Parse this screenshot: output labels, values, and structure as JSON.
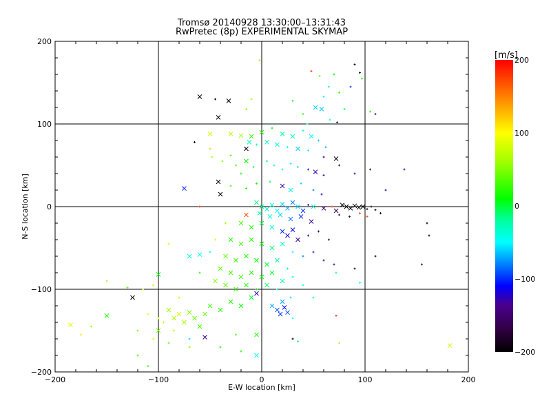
{
  "chart_data": {
    "type": "scatter",
    "title": "Tromsø 20140928 13:30:00–13:31:43",
    "subtitle": "RwPretec (8p) EXPERIMENTAL SKYMAP",
    "xlabel": "E-W location [km]",
    "ylabel": "N-S location [km]",
    "xlim": [
      -200,
      200
    ],
    "ylim": [
      -200,
      200
    ],
    "xticks": [
      "-200",
      "-100",
      "0",
      "100",
      "200"
    ],
    "yticks": [
      "-200",
      "-100",
      "0",
      "100",
      "200"
    ],
    "grid": true,
    "colorbar": {
      "label": "[m/s]",
      "range": [
        -200,
        200
      ],
      "ticks": [
        "200",
        "100",
        "0",
        "-100",
        "-200"
      ],
      "colormap": [
        [
          -200,
          "#000000"
        ],
        [
          -170,
          "#300040"
        ],
        [
          -135,
          "#4a0090"
        ],
        [
          -110,
          "#0000ff"
        ],
        [
          -80,
          "#0080ff"
        ],
        [
          -50,
          "#00ffff"
        ],
        [
          -20,
          "#00ffa0"
        ],
        [
          10,
          "#00ff00"
        ],
        [
          60,
          "#a0ff00"
        ],
        [
          100,
          "#ffff00"
        ],
        [
          150,
          "#ff8000"
        ],
        [
          200,
          "#ff0000"
        ]
      ]
    },
    "marker_legend": {
      "x": "cross",
      "+": "small plus"
    },
    "points": [
      [
        -60,
        133,
        -200,
        "x"
      ],
      [
        -42,
        108,
        -200,
        "x"
      ],
      [
        -32,
        128,
        -200,
        "x"
      ],
      [
        -45,
        130,
        -200,
        "+"
      ],
      [
        -10,
        130,
        60,
        "+"
      ],
      [
        -15,
        118,
        50,
        "+"
      ],
      [
        -2,
        177,
        60,
        "+"
      ],
      [
        48,
        164,
        180,
        "+"
      ],
      [
        56,
        158,
        40,
        "+"
      ],
      [
        65,
        145,
        -20,
        "+"
      ],
      [
        70,
        160,
        10,
        "+"
      ],
      [
        90,
        172,
        -190,
        "+"
      ],
      [
        95,
        162,
        -190,
        "+"
      ],
      [
        97,
        155,
        10,
        "+"
      ],
      [
        86,
        145,
        -100,
        "+"
      ],
      [
        60,
        133,
        -40,
        "+"
      ],
      [
        75,
        138,
        30,
        "+"
      ],
      [
        52,
        120,
        -60,
        "x"
      ],
      [
        58,
        118,
        -60,
        "x"
      ],
      [
        66,
        105,
        -40,
        "+"
      ],
      [
        73,
        102,
        -160,
        "+"
      ],
      [
        110,
        112,
        -160,
        "+"
      ],
      [
        105,
        115,
        20,
        "+"
      ],
      [
        80,
        118,
        -10,
        "+"
      ],
      [
        40,
        112,
        20,
        "+"
      ],
      [
        44,
        100,
        -20,
        "+"
      ],
      [
        30,
        128,
        0,
        "+"
      ],
      [
        -50,
        88,
        80,
        "x"
      ],
      [
        -30,
        88,
        70,
        "x"
      ],
      [
        -20,
        86,
        60,
        "x"
      ],
      [
        -10,
        85,
        30,
        "x"
      ],
      [
        0,
        90,
        20,
        "x"
      ],
      [
        10,
        95,
        10,
        "+"
      ],
      [
        20,
        88,
        -20,
        "x"
      ],
      [
        30,
        85,
        -30,
        "x"
      ],
      [
        40,
        92,
        -40,
        "+"
      ],
      [
        48,
        85,
        -50,
        "x"
      ],
      [
        55,
        80,
        -60,
        "+"
      ],
      [
        62,
        72,
        -70,
        "+"
      ],
      [
        -15,
        70,
        -200,
        "x"
      ],
      [
        -12,
        78,
        -30,
        "x"
      ],
      [
        -5,
        75,
        -20,
        "+"
      ],
      [
        5,
        78,
        -30,
        "x"
      ],
      [
        15,
        75,
        -40,
        "x"
      ],
      [
        25,
        72,
        -50,
        "+"
      ],
      [
        35,
        70,
        -60,
        "x"
      ],
      [
        45,
        68,
        -50,
        "+"
      ],
      [
        60,
        60,
        -140,
        "+"
      ],
      [
        72,
        58,
        -200,
        "x"
      ],
      [
        75,
        50,
        -150,
        "+"
      ],
      [
        90,
        40,
        -150,
        "+"
      ],
      [
        105,
        45,
        -150,
        "+"
      ],
      [
        -65,
        78,
        -200,
        "+"
      ],
      [
        -50,
        70,
        120,
        "+"
      ],
      [
        -48,
        60,
        60,
        "+"
      ],
      [
        -38,
        55,
        50,
        "+"
      ],
      [
        -30,
        62,
        40,
        "+"
      ],
      [
        -25,
        50,
        30,
        "+"
      ],
      [
        -20,
        40,
        20,
        "+"
      ],
      [
        -15,
        55,
        10,
        "x"
      ],
      [
        -8,
        48,
        0,
        "+"
      ],
      [
        5,
        55,
        -20,
        "+"
      ],
      [
        12,
        50,
        -30,
        "+"
      ],
      [
        20,
        45,
        -40,
        "+"
      ],
      [
        28,
        52,
        -50,
        "+"
      ],
      [
        35,
        48,
        -60,
        "+"
      ],
      [
        45,
        45,
        -100,
        "+"
      ],
      [
        52,
        42,
        -130,
        "x"
      ],
      [
        60,
        38,
        -140,
        "+"
      ],
      [
        -42,
        30,
        -200,
        "x"
      ],
      [
        -40,
        15,
        -200,
        "x"
      ],
      [
        -75,
        22,
        -100,
        "x"
      ],
      [
        -30,
        25,
        30,
        "+"
      ],
      [
        -15,
        22,
        20,
        "+"
      ],
      [
        -5,
        28,
        10,
        "+"
      ],
      [
        8,
        30,
        -10,
        "+"
      ],
      [
        20,
        25,
        -130,
        "x"
      ],
      [
        28,
        20,
        -40,
        "x"
      ],
      [
        38,
        28,
        -60,
        "+"
      ],
      [
        50,
        20,
        -80,
        "+"
      ],
      [
        58,
        15,
        -120,
        "+"
      ],
      [
        120,
        20,
        -150,
        "+"
      ],
      [
        138,
        45,
        -130,
        "+"
      ],
      [
        -60,
        0,
        190,
        "+"
      ],
      [
        -5,
        5,
        -10,
        "x"
      ],
      [
        0,
        0,
        -20,
        "x"
      ],
      [
        5,
        -3,
        -30,
        "x"
      ],
      [
        10,
        2,
        -40,
        "x"
      ],
      [
        15,
        -5,
        -50,
        "x"
      ],
      [
        20,
        3,
        -60,
        "x"
      ],
      [
        25,
        -2,
        -70,
        "x"
      ],
      [
        30,
        5,
        -80,
        "x"
      ],
      [
        35,
        0,
        -60,
        "x"
      ],
      [
        40,
        -5,
        -100,
        "x"
      ],
      [
        45,
        2,
        -120,
        "+"
      ],
      [
        50,
        0,
        -30,
        "x"
      ],
      [
        -2,
        -8,
        -20,
        "x"
      ],
      [
        8,
        -12,
        -40,
        "x"
      ],
      [
        18,
        -10,
        -60,
        "x"
      ],
      [
        28,
        -15,
        -80,
        "x"
      ],
      [
        38,
        -12,
        -100,
        "x"
      ],
      [
        48,
        -18,
        -130,
        "x"
      ],
      [
        60,
        -2,
        -150,
        "x"
      ],
      [
        68,
        0,
        180,
        "+"
      ],
      [
        72,
        -5,
        -170,
        "x"
      ],
      [
        78,
        2,
        -190,
        "x"
      ],
      [
        82,
        0,
        -200,
        "x"
      ],
      [
        86,
        -2,
        -200,
        "x"
      ],
      [
        90,
        1,
        -200,
        "x"
      ],
      [
        94,
        -1,
        -200,
        "x"
      ],
      [
        98,
        0,
        -200,
        "x"
      ],
      [
        102,
        -3,
        -200,
        "+"
      ],
      [
        106,
        0,
        -200,
        "+"
      ],
      [
        110,
        -4,
        -200,
        "+"
      ],
      [
        115,
        -8,
        -200,
        "+"
      ],
      [
        95,
        -8,
        180,
        "+"
      ],
      [
        102,
        -12,
        170,
        "+"
      ],
      [
        75,
        -10,
        -160,
        "+"
      ],
      [
        85,
        -12,
        -170,
        "+"
      ],
      [
        160,
        -20,
        -200,
        "+"
      ],
      [
        162,
        -35,
        -200,
        "+"
      ],
      [
        155,
        -70,
        -180,
        "+"
      ],
      [
        90,
        -75,
        -200,
        "+"
      ],
      [
        110,
        -60,
        -200,
        "+"
      ],
      [
        -15,
        -10,
        170,
        "x"
      ],
      [
        -20,
        -20,
        30,
        "x"
      ],
      [
        -10,
        -25,
        20,
        "x"
      ],
      [
        0,
        -20,
        0,
        "x"
      ],
      [
        10,
        -25,
        -30,
        "x"
      ],
      [
        20,
        -30,
        -100,
        "x"
      ],
      [
        25,
        -35,
        -120,
        "x"
      ],
      [
        30,
        -28,
        -110,
        "x"
      ],
      [
        35,
        -40,
        -130,
        "x"
      ],
      [
        45,
        -35,
        -150,
        "+"
      ],
      [
        55,
        -30,
        -160,
        "+"
      ],
      [
        65,
        -40,
        -170,
        "+"
      ],
      [
        -30,
        -40,
        20,
        "x"
      ],
      [
        -20,
        -45,
        30,
        "x"
      ],
      [
        -10,
        -40,
        20,
        "x"
      ],
      [
        0,
        -45,
        10,
        "x"
      ],
      [
        10,
        -50,
        -10,
        "x"
      ],
      [
        20,
        -45,
        -30,
        "x"
      ],
      [
        30,
        -55,
        -50,
        "+"
      ],
      [
        40,
        -60,
        -80,
        "+"
      ],
      [
        50,
        -55,
        -100,
        "+"
      ],
      [
        60,
        -65,
        -150,
        "+"
      ],
      [
        70,
        -70,
        -150,
        "+"
      ],
      [
        -35,
        -60,
        40,
        "x"
      ],
      [
        -25,
        -65,
        30,
        "x"
      ],
      [
        -15,
        -60,
        20,
        "x"
      ],
      [
        -5,
        -65,
        10,
        "x"
      ],
      [
        5,
        -70,
        0,
        "x"
      ],
      [
        15,
        -65,
        -20,
        "x"
      ],
      [
        25,
        -75,
        -30,
        "+"
      ],
      [
        -60,
        -58,
        -40,
        "x"
      ],
      [
        -70,
        -60,
        -40,
        "x"
      ],
      [
        -50,
        -55,
        -30,
        "+"
      ],
      [
        -90,
        -45,
        80,
        "+"
      ],
      [
        -40,
        -75,
        40,
        "x"
      ],
      [
        -30,
        -80,
        30,
        "x"
      ],
      [
        -20,
        -85,
        30,
        "x"
      ],
      [
        -10,
        -80,
        20,
        "x"
      ],
      [
        0,
        -85,
        10,
        "x"
      ],
      [
        10,
        -80,
        0,
        "x"
      ],
      [
        20,
        -90,
        -20,
        "x"
      ],
      [
        30,
        -85,
        -30,
        "+"
      ],
      [
        -45,
        -90,
        50,
        "x"
      ],
      [
        -35,
        -95,
        40,
        "x"
      ],
      [
        -25,
        -100,
        30,
        "x"
      ],
      [
        -15,
        -95,
        20,
        "x"
      ],
      [
        -5,
        -100,
        10,
        "+"
      ],
      [
        5,
        -95,
        -10,
        "x"
      ],
      [
        15,
        -100,
        -30,
        "+"
      ],
      [
        40,
        -95,
        -40,
        "+"
      ],
      [
        50,
        -110,
        -30,
        "+"
      ],
      [
        -100,
        -82,
        10,
        "x"
      ],
      [
        -105,
        -95,
        80,
        "+"
      ],
      [
        -115,
        -100,
        60,
        "+"
      ],
      [
        -125,
        -110,
        -200,
        "x"
      ],
      [
        -150,
        -90,
        60,
        "+"
      ],
      [
        -130,
        -98,
        40,
        "+"
      ],
      [
        -110,
        -130,
        90,
        "+"
      ],
      [
        -90,
        -125,
        60,
        "x"
      ],
      [
        -85,
        -135,
        70,
        "x"
      ],
      [
        -80,
        -130,
        80,
        "x"
      ],
      [
        -75,
        -140,
        60,
        "x"
      ],
      [
        -70,
        -128,
        50,
        "x"
      ],
      [
        -65,
        -135,
        40,
        "x"
      ],
      [
        -60,
        -145,
        30,
        "x"
      ],
      [
        -55,
        -130,
        40,
        "x"
      ],
      [
        -95,
        -140,
        70,
        "+"
      ],
      [
        -100,
        -135,
        80,
        "+"
      ],
      [
        -85,
        -150,
        60,
        "+"
      ],
      [
        -50,
        -120,
        30,
        "x"
      ],
      [
        -40,
        -125,
        20,
        "x"
      ],
      [
        -30,
        -115,
        20,
        "x"
      ],
      [
        -20,
        -120,
        10,
        "x"
      ],
      [
        -10,
        -110,
        0,
        "x"
      ],
      [
        -5,
        -105,
        -130,
        "x"
      ],
      [
        15,
        -125,
        -90,
        "x"
      ],
      [
        18,
        -130,
        -100,
        "x"
      ],
      [
        22,
        -122,
        -110,
        "x"
      ],
      [
        25,
        -128,
        -90,
        "x"
      ],
      [
        20,
        -115,
        -70,
        "x"
      ],
      [
        28,
        -110,
        -60,
        "+"
      ],
      [
        10,
        -120,
        -70,
        "x"
      ],
      [
        30,
        -135,
        -50,
        "+"
      ],
      [
        -185,
        -143,
        90,
        "x"
      ],
      [
        -175,
        -155,
        110,
        "+"
      ],
      [
        -165,
        -145,
        60,
        "+"
      ],
      [
        -150,
        -132,
        20,
        "x"
      ],
      [
        -120,
        -150,
        40,
        "+"
      ],
      [
        -105,
        -160,
        90,
        "+"
      ],
      [
        -90,
        -165,
        40,
        "+"
      ],
      [
        -70,
        -160,
        -60,
        "+"
      ],
      [
        -55,
        -158,
        -130,
        "x"
      ],
      [
        -40,
        -170,
        20,
        "+"
      ],
      [
        -20,
        -175,
        20,
        "+"
      ],
      [
        -5,
        -155,
        20,
        "x"
      ],
      [
        -5,
        -180,
        -50,
        "x"
      ],
      [
        30,
        -160,
        -200,
        "+"
      ],
      [
        35,
        -163,
        -10,
        "+"
      ],
      [
        75,
        -165,
        60,
        "+"
      ],
      [
        182,
        -168,
        80,
        "x"
      ],
      [
        -110,
        -193,
        20,
        "+"
      ],
      [
        -120,
        -180,
        30,
        "+"
      ],
      [
        72,
        -132,
        180,
        "+"
      ],
      [
        72,
        -80,
        -20,
        "+"
      ],
      [
        95,
        -92,
        -50,
        "+"
      ],
      [
        -80,
        -110,
        70,
        "+"
      ],
      [
        -100,
        -150,
        50,
        "x"
      ],
      [
        -70,
        -170,
        50,
        "+"
      ],
      [
        -25,
        -155,
        30,
        "+"
      ],
      [
        -60,
        -80,
        20,
        "+"
      ],
      [
        -45,
        -40,
        90,
        "+"
      ],
      [
        -35,
        -20,
        60,
        "+"
      ]
    ]
  }
}
